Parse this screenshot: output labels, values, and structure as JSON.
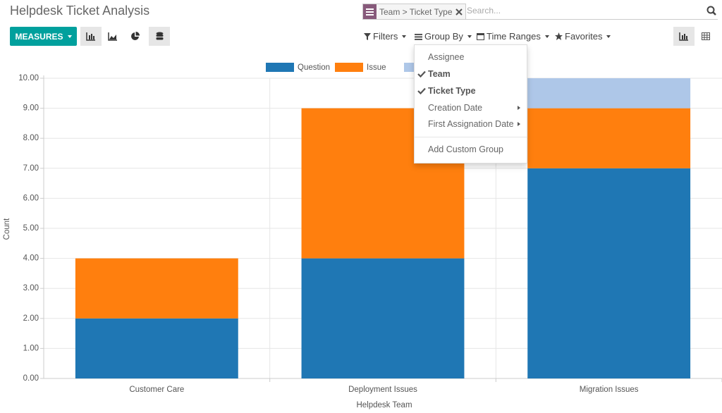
{
  "header": {
    "title": "Helpdesk Ticket Analysis",
    "search_facet": "Team > Ticket Type",
    "search_placeholder": "Search..."
  },
  "toolbar": {
    "measures": "MEASURES",
    "filters": "Filters",
    "group_by": "Group By",
    "time_ranges": "Time Ranges",
    "favorites": "Favorites"
  },
  "group_by_menu": {
    "items": [
      {
        "label": "Assignee",
        "checked": false,
        "submenu": false
      },
      {
        "label": "Team",
        "checked": true,
        "submenu": false
      },
      {
        "label": "Ticket Type",
        "checked": true,
        "submenu": false
      },
      {
        "label": "Creation Date",
        "checked": false,
        "submenu": true
      },
      {
        "label": "First Assignation Date",
        "checked": false,
        "submenu": true
      }
    ],
    "custom": "Add Custom Group"
  },
  "chart_data": {
    "type": "stacked_bar",
    "x_label": "Helpdesk Team",
    "y_label": "Count",
    "categories": [
      "Customer Care",
      "Deployment Issues",
      "Migration Issues"
    ],
    "series": [
      {
        "name": "Question",
        "color": "#1f77b4",
        "values": [
          2,
          4,
          7
        ]
      },
      {
        "name": "Issue",
        "color": "#ff7f0e",
        "values": [
          2,
          5,
          2
        ]
      },
      {
        "name": null,
        "color": "#aec7e8",
        "values": [
          0,
          0,
          1
        ]
      }
    ],
    "ylim": [
      0,
      10
    ],
    "yticks": [
      {
        "value": 0,
        "label": "0.00"
      },
      {
        "value": 1,
        "label": "1.00"
      },
      {
        "value": 2,
        "label": "2.00"
      },
      {
        "value": 3,
        "label": "3.00"
      },
      {
        "value": 4,
        "label": "4.00"
      },
      {
        "value": 5,
        "label": "5.00"
      },
      {
        "value": 6,
        "label": "6.00"
      },
      {
        "value": 7,
        "label": "7.00"
      },
      {
        "value": 8,
        "label": "8.00"
      },
      {
        "value": 9,
        "label": "9.00"
      },
      {
        "value": 10,
        "label": "10.00"
      }
    ],
    "grid": true
  }
}
